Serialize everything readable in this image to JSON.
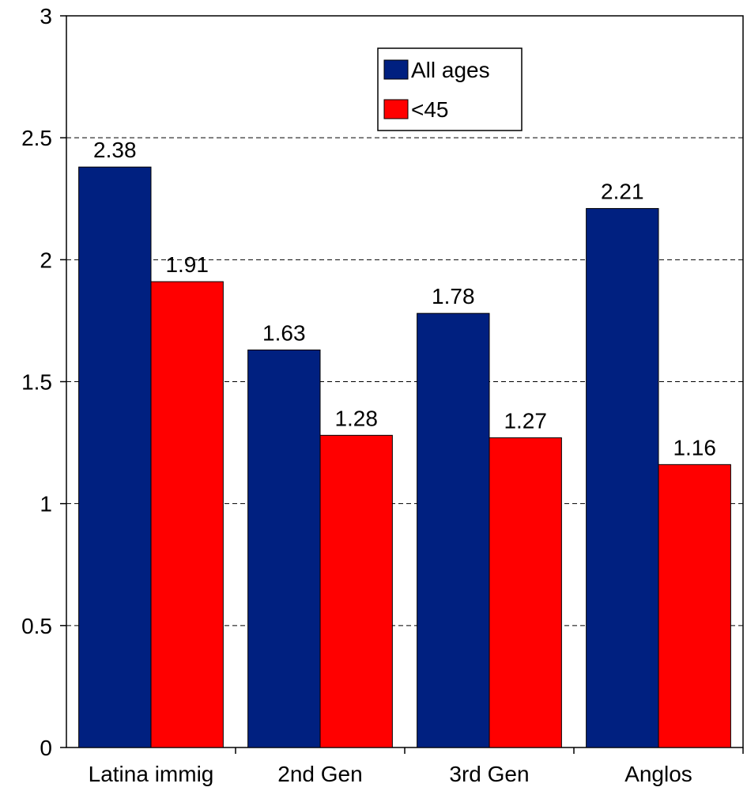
{
  "chart_data": {
    "type": "bar",
    "categories": [
      "Latina immig",
      "2nd Gen",
      "3rd Gen",
      "Anglos"
    ],
    "series": [
      {
        "name": "All ages",
        "values": [
          2.38,
          1.63,
          1.78,
          2.21
        ],
        "color": "#002080"
      },
      {
        "name": "<45",
        "values": [
          1.91,
          1.28,
          1.27,
          1.16
        ],
        "color": "#ff0000"
      }
    ],
    "ylim": [
      0,
      3
    ],
    "yticks": [
      "0",
      "0.5",
      "1",
      "1.5",
      "2",
      "2.5",
      "3"
    ],
    "data_labels": [
      [
        "2.38",
        "1.63",
        "1.78",
        "2.21"
      ],
      [
        "1.91",
        "1.28",
        "1.27",
        "1.16"
      ]
    ],
    "grid": "dashed horizontal",
    "legend_position": "top-center"
  }
}
